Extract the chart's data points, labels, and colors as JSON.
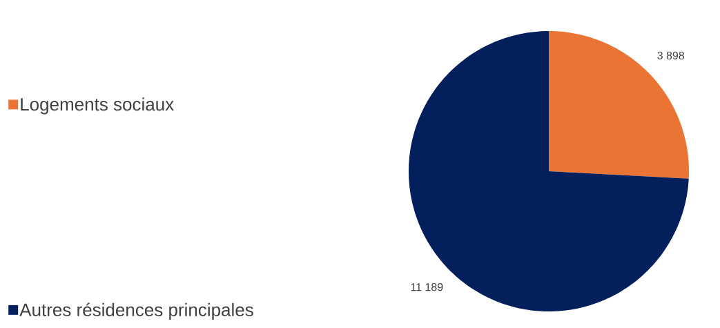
{
  "chart_data": {
    "type": "pie",
    "categories": [
      "Logements sociaux",
      "Autres résidences principales"
    ],
    "values": [
      3898,
      11189
    ],
    "colors": [
      "#ea7434",
      "#031f5c"
    ],
    "value_labels": [
      "3 898",
      "11 189"
    ],
    "legend": "left"
  }
}
